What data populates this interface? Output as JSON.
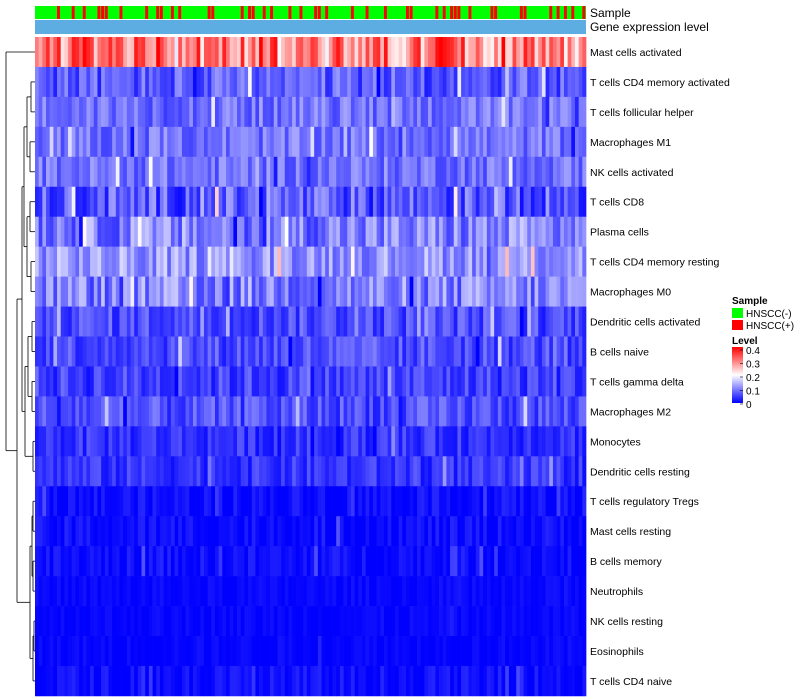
{
  "chart_data": {
    "type": "heatmap",
    "title": "",
    "annotations": {
      "sample_label": "Sample",
      "group_label": "Gene expression level"
    },
    "rows": [
      {
        "name": "Mast cells activated",
        "mean": 0.3,
        "spread": 0.09
      },
      {
        "name": "T cells CD4 memory activated",
        "mean": 0.07,
        "spread": 0.05
      },
      {
        "name": "T cells follicular helper",
        "mean": 0.09,
        "spread": 0.04
      },
      {
        "name": "Macrophages M1",
        "mean": 0.09,
        "spread": 0.04
      },
      {
        "name": "NK cells activated",
        "mean": 0.09,
        "spread": 0.04
      },
      {
        "name": "T cells CD8",
        "mean": 0.07,
        "spread": 0.06
      },
      {
        "name": "Plasma cells",
        "mean": 0.1,
        "spread": 0.06
      },
      {
        "name": "T cells CD4 memory resting",
        "mean": 0.12,
        "spread": 0.05
      },
      {
        "name": "Macrophages M0",
        "mean": 0.1,
        "spread": 0.06
      },
      {
        "name": "Dendritic cells activated",
        "mean": 0.06,
        "spread": 0.04
      },
      {
        "name": "B cells naive",
        "mean": 0.06,
        "spread": 0.04
      },
      {
        "name": "T cells gamma delta",
        "mean": 0.05,
        "spread": 0.04
      },
      {
        "name": "Macrophages M2",
        "mean": 0.06,
        "spread": 0.04
      },
      {
        "name": "Monocytes",
        "mean": 0.04,
        "spread": 0.03
      },
      {
        "name": "Dendritic cells resting",
        "mean": 0.04,
        "spread": 0.03
      },
      {
        "name": "T cells regulatory  Tregs",
        "mean": 0.01,
        "spread": 0.02
      },
      {
        "name": "Mast cells resting",
        "mean": 0.01,
        "spread": 0.02
      },
      {
        "name": "B cells memory",
        "mean": 0.01,
        "spread": 0.02
      },
      {
        "name": "Neutrophils",
        "mean": 0.005,
        "spread": 0.01
      },
      {
        "name": "NK cells resting",
        "mean": 0.005,
        "spread": 0.01
      },
      {
        "name": "Eosinophils",
        "mean": 0.005,
        "spread": 0.01
      },
      {
        "name": "T cells CD4 naive",
        "mean": 0.01,
        "spread": 0.02
      }
    ],
    "n_samples": 150,
    "sample_groups": [
      {
        "name": "HNSCC(-)",
        "color": "#00ff00"
      },
      {
        "name": "HNSCC(+)",
        "color": "#ff0000"
      }
    ],
    "group_annotation_color": "#5dade2",
    "color_scale": {
      "min": 0,
      "max": 0.4,
      "colors": [
        "#0000ff",
        "#ffffff",
        "#ff0000"
      ],
      "ticks": [
        "0.4",
        "0.3",
        "0.2",
        "0.1",
        "0"
      ]
    },
    "legend": {
      "sample_title": "Sample",
      "level_title": "Level"
    }
  }
}
